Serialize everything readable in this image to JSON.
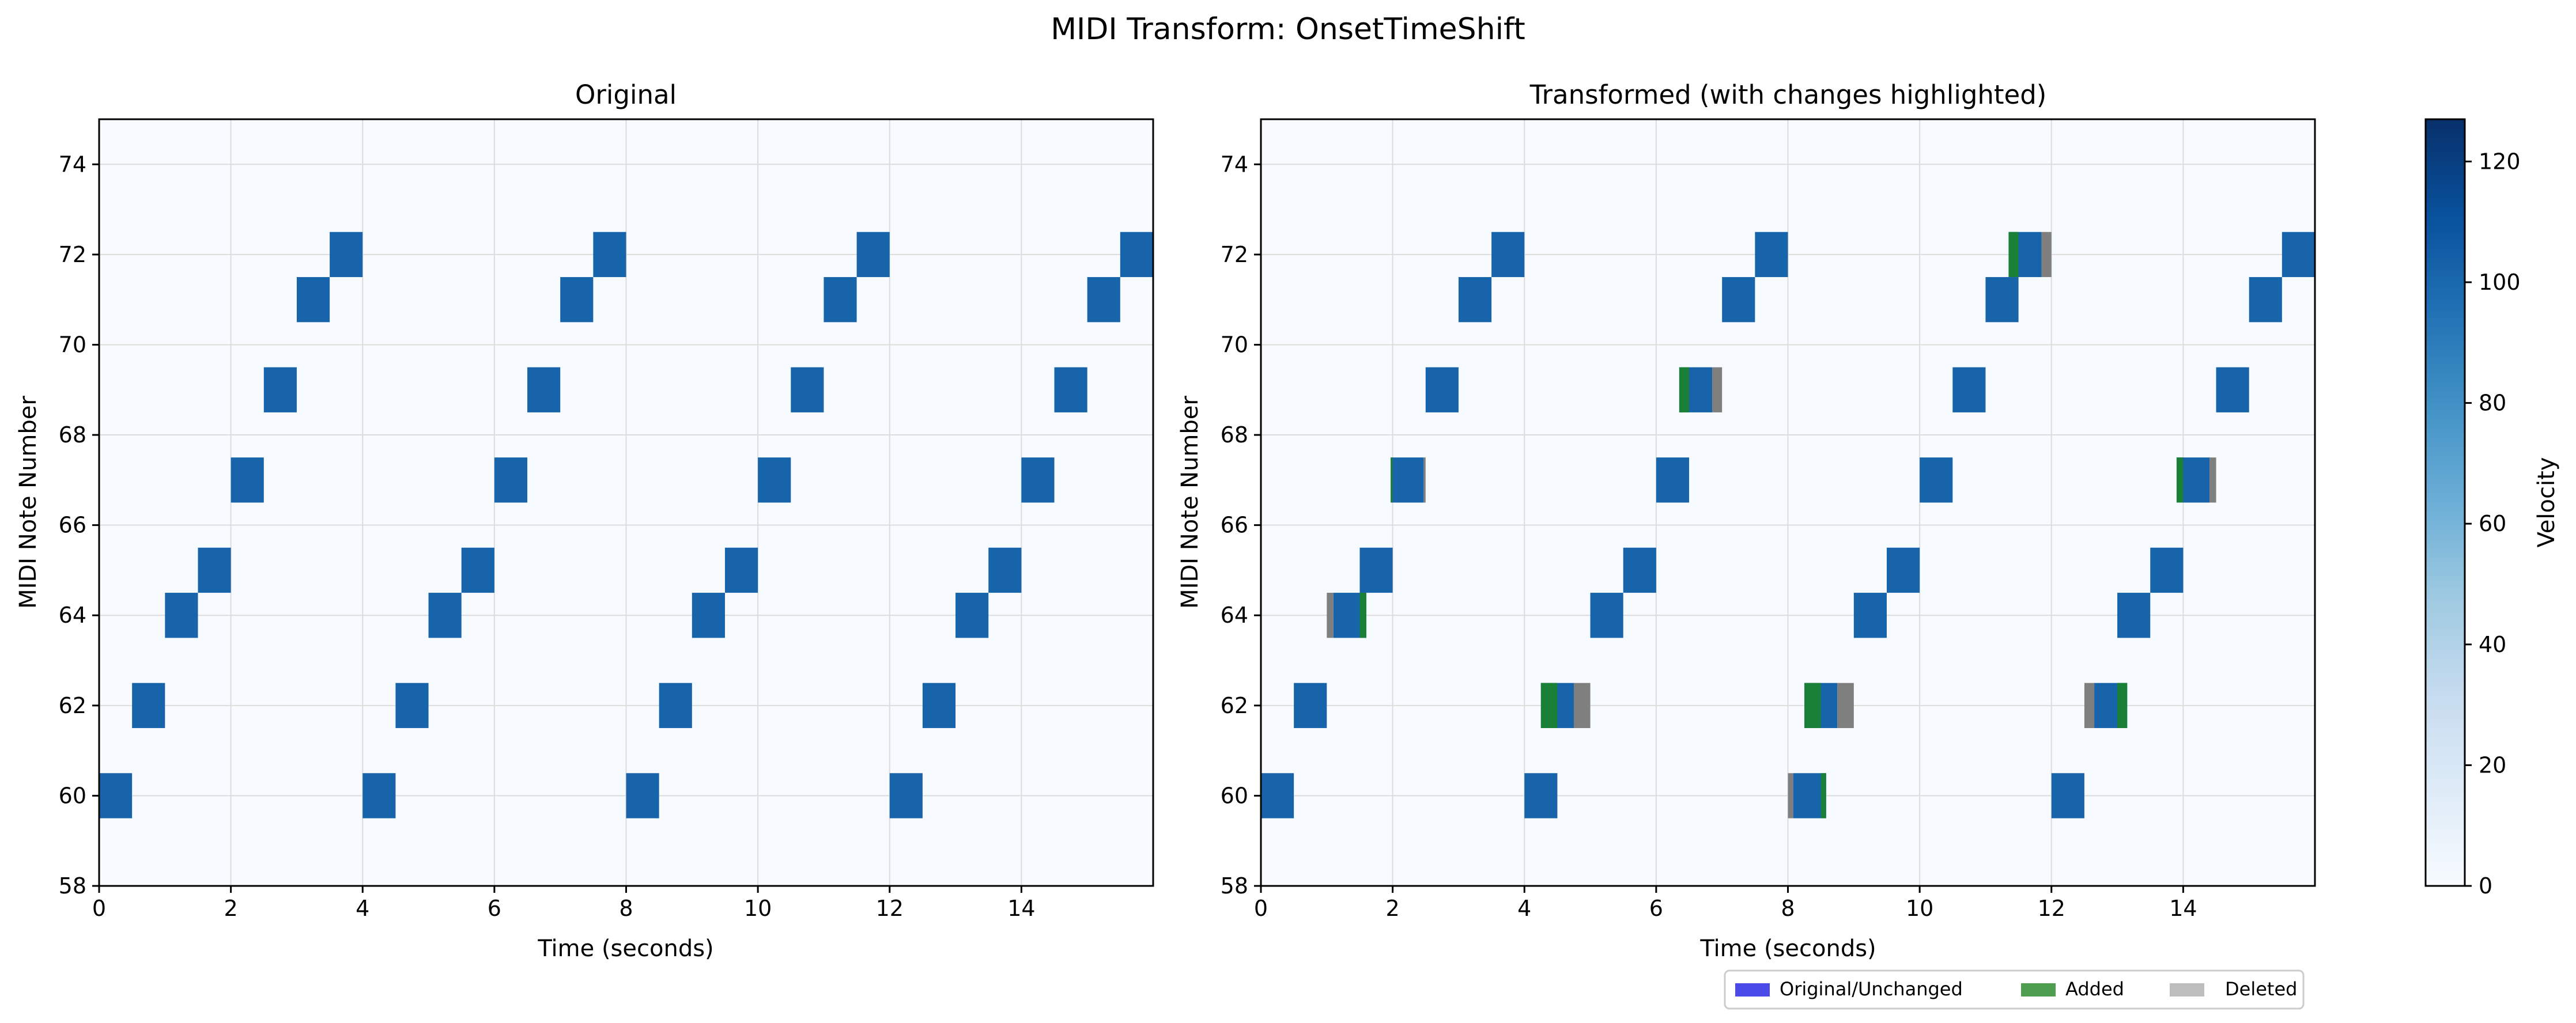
{
  "figure_title": "MIDI Transform: OnsetTimeShift",
  "colors": {
    "background": "#f7fbff",
    "note": "#1764ab",
    "added": "#1a7f37",
    "deleted": "#7f7f7f",
    "grid": "#dcdcdc",
    "legend_original": "#4a4ae8",
    "legend_added": "#4f9e4f",
    "legend_deleted": "#bdbdbd"
  },
  "chart_data": [
    {
      "type": "heatmap",
      "title": "Original",
      "xlabel": "Time (seconds)",
      "ylabel": "MIDI Note Number",
      "xlim": [
        0,
        16
      ],
      "ylim": [
        58,
        75
      ],
      "xticks": [
        0,
        2,
        4,
        6,
        8,
        10,
        12,
        14
      ],
      "yticks": [
        58,
        60,
        62,
        64,
        66,
        68,
        70,
        72,
        74
      ],
      "grid": true,
      "notes": [
        {
          "start": 0.0,
          "end": 0.5,
          "pitch": 60,
          "velocity": 100
        },
        {
          "start": 0.5,
          "end": 1.0,
          "pitch": 62,
          "velocity": 100
        },
        {
          "start": 1.0,
          "end": 1.5,
          "pitch": 64,
          "velocity": 100
        },
        {
          "start": 1.5,
          "end": 2.0,
          "pitch": 65,
          "velocity": 100
        },
        {
          "start": 2.0,
          "end": 2.5,
          "pitch": 67,
          "velocity": 100
        },
        {
          "start": 2.5,
          "end": 3.0,
          "pitch": 69,
          "velocity": 100
        },
        {
          "start": 3.0,
          "end": 3.5,
          "pitch": 71,
          "velocity": 100
        },
        {
          "start": 3.5,
          "end": 4.0,
          "pitch": 72,
          "velocity": 100
        },
        {
          "start": 4.0,
          "end": 4.5,
          "pitch": 60,
          "velocity": 100
        },
        {
          "start": 4.5,
          "end": 5.0,
          "pitch": 62,
          "velocity": 100
        },
        {
          "start": 5.0,
          "end": 5.5,
          "pitch": 64,
          "velocity": 100
        },
        {
          "start": 5.5,
          "end": 6.0,
          "pitch": 65,
          "velocity": 100
        },
        {
          "start": 6.0,
          "end": 6.5,
          "pitch": 67,
          "velocity": 100
        },
        {
          "start": 6.5,
          "end": 7.0,
          "pitch": 69,
          "velocity": 100
        },
        {
          "start": 7.0,
          "end": 7.5,
          "pitch": 71,
          "velocity": 100
        },
        {
          "start": 7.5,
          "end": 8.0,
          "pitch": 72,
          "velocity": 100
        },
        {
          "start": 8.0,
          "end": 8.5,
          "pitch": 60,
          "velocity": 100
        },
        {
          "start": 8.5,
          "end": 9.0,
          "pitch": 62,
          "velocity": 100
        },
        {
          "start": 9.0,
          "end": 9.5,
          "pitch": 64,
          "velocity": 100
        },
        {
          "start": 9.5,
          "end": 10.0,
          "pitch": 65,
          "velocity": 100
        },
        {
          "start": 10.0,
          "end": 10.5,
          "pitch": 67,
          "velocity": 100
        },
        {
          "start": 10.5,
          "end": 11.0,
          "pitch": 69,
          "velocity": 100
        },
        {
          "start": 11.0,
          "end": 11.5,
          "pitch": 71,
          "velocity": 100
        },
        {
          "start": 11.5,
          "end": 12.0,
          "pitch": 72,
          "velocity": 100
        },
        {
          "start": 12.0,
          "end": 12.5,
          "pitch": 60,
          "velocity": 100
        },
        {
          "start": 12.5,
          "end": 13.0,
          "pitch": 62,
          "velocity": 100
        },
        {
          "start": 13.0,
          "end": 13.5,
          "pitch": 64,
          "velocity": 100
        },
        {
          "start": 13.5,
          "end": 14.0,
          "pitch": 65,
          "velocity": 100
        },
        {
          "start": 14.0,
          "end": 14.5,
          "pitch": 67,
          "velocity": 100
        },
        {
          "start": 14.5,
          "end": 15.0,
          "pitch": 69,
          "velocity": 100
        },
        {
          "start": 15.0,
          "end": 15.5,
          "pitch": 71,
          "velocity": 100
        },
        {
          "start": 15.5,
          "end": 16.0,
          "pitch": 72,
          "velocity": 100
        }
      ]
    },
    {
      "type": "heatmap",
      "title": "Transformed (with changes highlighted)",
      "xlabel": "Time (seconds)",
      "ylabel": "MIDI Note Number",
      "xlim": [
        0,
        16
      ],
      "ylim": [
        58,
        75
      ],
      "xticks": [
        0,
        2,
        4,
        6,
        8,
        10,
        12,
        14
      ],
      "yticks": [
        58,
        60,
        62,
        64,
        66,
        68,
        70,
        72,
        74
      ],
      "grid": true,
      "notes": [
        {
          "start": 0.0,
          "end": 0.5,
          "pitch": 60,
          "velocity": 100
        },
        {
          "start": 0.5,
          "end": 1.0,
          "pitch": 62,
          "velocity": 100
        },
        {
          "start": 1.1,
          "end": 1.6,
          "pitch": 64,
          "velocity": 100
        },
        {
          "start": 1.5,
          "end": 2.0,
          "pitch": 65,
          "velocity": 100
        },
        {
          "start": 1.97,
          "end": 2.47,
          "pitch": 67,
          "velocity": 100
        },
        {
          "start": 2.5,
          "end": 3.0,
          "pitch": 69,
          "velocity": 100
        },
        {
          "start": 3.0,
          "end": 3.5,
          "pitch": 71,
          "velocity": 100
        },
        {
          "start": 3.5,
          "end": 4.0,
          "pitch": 72,
          "velocity": 100
        },
        {
          "start": 4.0,
          "end": 4.5,
          "pitch": 60,
          "velocity": 100
        },
        {
          "start": 4.25,
          "end": 4.75,
          "pitch": 62,
          "velocity": 100
        },
        {
          "start": 5.0,
          "end": 5.5,
          "pitch": 64,
          "velocity": 100
        },
        {
          "start": 5.5,
          "end": 6.0,
          "pitch": 65,
          "velocity": 100
        },
        {
          "start": 6.0,
          "end": 6.5,
          "pitch": 67,
          "velocity": 100
        },
        {
          "start": 6.35,
          "end": 6.85,
          "pitch": 69,
          "velocity": 100
        },
        {
          "start": 7.0,
          "end": 7.5,
          "pitch": 71,
          "velocity": 100
        },
        {
          "start": 7.5,
          "end": 8.0,
          "pitch": 72,
          "velocity": 100
        },
        {
          "start": 8.08,
          "end": 8.58,
          "pitch": 60,
          "velocity": 100
        },
        {
          "start": 8.25,
          "end": 8.75,
          "pitch": 62,
          "velocity": 100
        },
        {
          "start": 9.0,
          "end": 9.5,
          "pitch": 64,
          "velocity": 100
        },
        {
          "start": 9.5,
          "end": 10.0,
          "pitch": 65,
          "velocity": 100
        },
        {
          "start": 10.0,
          "end": 10.5,
          "pitch": 67,
          "velocity": 100
        },
        {
          "start": 10.5,
          "end": 11.0,
          "pitch": 69,
          "velocity": 100
        },
        {
          "start": 11.0,
          "end": 11.5,
          "pitch": 71,
          "velocity": 100
        },
        {
          "start": 11.35,
          "end": 11.85,
          "pitch": 72,
          "velocity": 100
        },
        {
          "start": 12.0,
          "end": 12.5,
          "pitch": 60,
          "velocity": 100
        },
        {
          "start": 12.65,
          "end": 13.15,
          "pitch": 62,
          "velocity": 100
        },
        {
          "start": 13.0,
          "end": 13.5,
          "pitch": 64,
          "velocity": 100
        },
        {
          "start": 13.5,
          "end": 14.0,
          "pitch": 65,
          "velocity": 100
        },
        {
          "start": 13.9,
          "end": 14.4,
          "pitch": 67,
          "velocity": 100
        },
        {
          "start": 14.5,
          "end": 15.0,
          "pitch": 69,
          "velocity": 100
        },
        {
          "start": 15.0,
          "end": 15.5,
          "pitch": 71,
          "velocity": 100
        },
        {
          "start": 15.5,
          "end": 16.0,
          "pitch": 72,
          "velocity": 100
        }
      ],
      "changes": [
        {
          "kind": "deleted",
          "start": 1.0,
          "end": 1.1,
          "pitch": 64
        },
        {
          "kind": "added",
          "start": 1.5,
          "end": 1.6,
          "pitch": 64
        },
        {
          "kind": "added",
          "start": 1.97,
          "end": 2.0,
          "pitch": 67
        },
        {
          "kind": "deleted",
          "start": 2.47,
          "end": 2.5,
          "pitch": 67
        },
        {
          "kind": "added",
          "start": 4.25,
          "end": 4.5,
          "pitch": 62
        },
        {
          "kind": "deleted",
          "start": 4.75,
          "end": 5.0,
          "pitch": 62
        },
        {
          "kind": "added",
          "start": 6.35,
          "end": 6.5,
          "pitch": 69
        },
        {
          "kind": "deleted",
          "start": 6.85,
          "end": 7.0,
          "pitch": 69
        },
        {
          "kind": "deleted",
          "start": 8.0,
          "end": 8.08,
          "pitch": 60
        },
        {
          "kind": "added",
          "start": 8.5,
          "end": 8.58,
          "pitch": 60
        },
        {
          "kind": "added",
          "start": 8.25,
          "end": 8.5,
          "pitch": 62
        },
        {
          "kind": "deleted",
          "start": 8.75,
          "end": 9.0,
          "pitch": 62
        },
        {
          "kind": "added",
          "start": 11.35,
          "end": 11.5,
          "pitch": 72
        },
        {
          "kind": "deleted",
          "start": 11.85,
          "end": 12.0,
          "pitch": 72
        },
        {
          "kind": "deleted",
          "start": 12.5,
          "end": 12.65,
          "pitch": 62
        },
        {
          "kind": "added",
          "start": 13.0,
          "end": 13.15,
          "pitch": 62
        },
        {
          "kind": "added",
          "start": 13.9,
          "end": 14.0,
          "pitch": 67
        },
        {
          "kind": "deleted",
          "start": 14.4,
          "end": 14.5,
          "pitch": 67
        }
      ],
      "legend": {
        "placement": "bottom-right",
        "entries": [
          "Original/Unchanged",
          "Added",
          "Deleted"
        ]
      }
    }
  ],
  "colorbar": {
    "label": "Velocity",
    "range": [
      0,
      127
    ],
    "ticks": [
      0,
      20,
      40,
      60,
      80,
      100,
      120
    ],
    "colors": [
      "#f7fbff",
      "#deebf7",
      "#c6dbef",
      "#9ecae1",
      "#6baed6",
      "#4292c6",
      "#2171b5",
      "#08519c",
      "#08306b"
    ]
  }
}
